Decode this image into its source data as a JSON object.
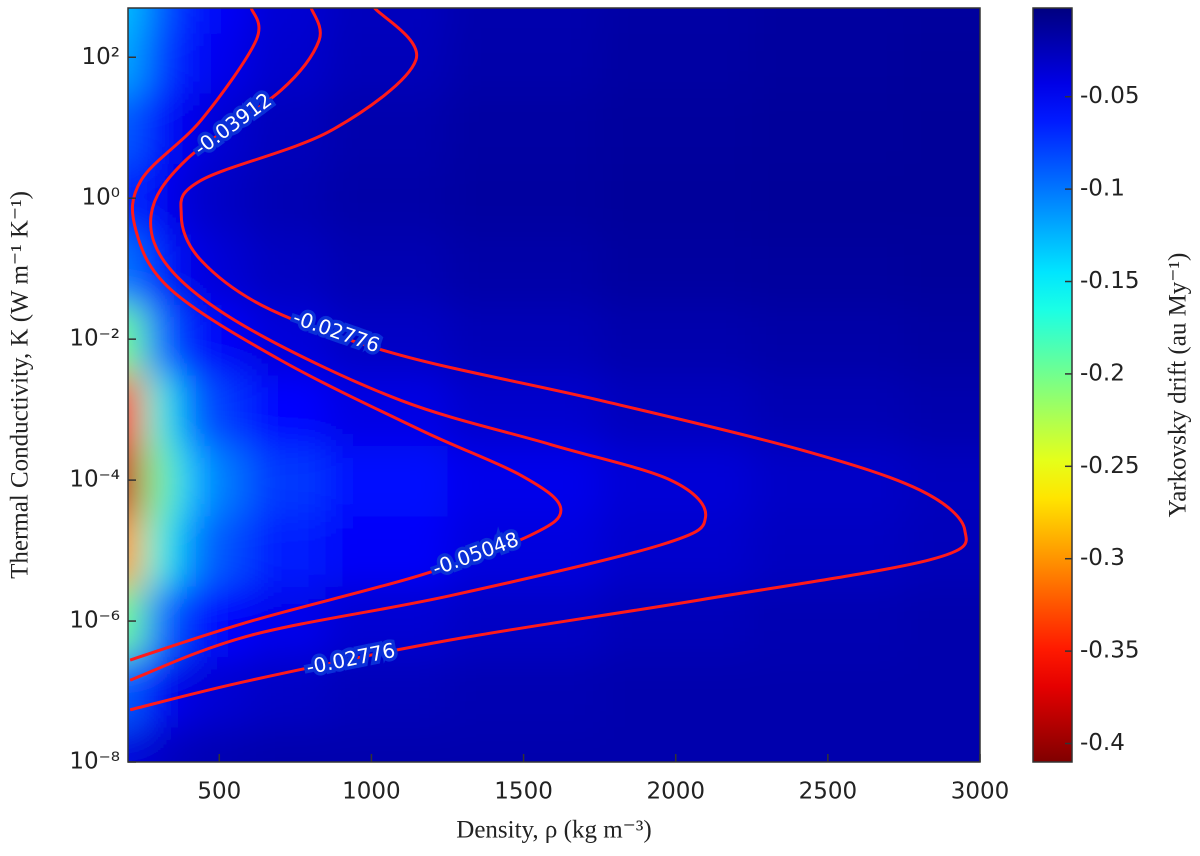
{
  "chart_data": {
    "type": "heatmap",
    "xlabel": "Density, ρ (kg m⁻³)",
    "ylabel": "Thermal Conductivity, K (W m⁻¹ K⁻¹)",
    "colorbar_label": "Yarkovsky drift (au My⁻¹)",
    "colormap": "jet",
    "ylog": true,
    "xlim": [
      200,
      3000
    ],
    "ylim": [
      1e-08,
      500
    ],
    "clim": [
      -0.41,
      -0.002
    ],
    "xticks": [
      500,
      1000,
      1500,
      2000,
      2500,
      3000
    ],
    "yticks": [
      {
        "value": 1e-08,
        "label": "10⁻⁸"
      },
      {
        "value": 1e-06,
        "label": "10⁻⁶"
      },
      {
        "value": 0.0001,
        "label": "10⁻⁴"
      },
      {
        "value": 0.01,
        "label": "10⁻²"
      },
      {
        "value": 1,
        "label": "10⁰"
      },
      {
        "value": 100,
        "label": "10²"
      }
    ],
    "cticks": [
      -0.05,
      -0.1,
      -0.15,
      -0.2,
      -0.25,
      -0.3,
      -0.35,
      -0.4
    ],
    "x": [
      200,
      300,
      400,
      500,
      700,
      1000,
      1500,
      2000,
      2500,
      3000
    ],
    "y": [
      1e-08,
      1e-07,
      1e-06,
      1e-05,
      0.0001,
      0.001,
      0.01,
      0.1,
      1,
      10,
      100,
      500
    ],
    "z": [
      [
        -0.04,
        -0.03,
        -0.025,
        -0.022,
        -0.02,
        -0.02,
        -0.02,
        -0.02,
        -0.02,
        -0.02
      ],
      [
        -0.09,
        -0.05,
        -0.04,
        -0.035,
        -0.03,
        -0.025,
        -0.022,
        -0.02,
        -0.02,
        -0.02
      ],
      [
        -0.2,
        -0.1,
        -0.07,
        -0.055,
        -0.045,
        -0.035,
        -0.03,
        -0.025,
        -0.022,
        -0.02
      ],
      [
        -0.3,
        -0.17,
        -0.11,
        -0.085,
        -0.065,
        -0.05,
        -0.04,
        -0.033,
        -0.028,
        -0.025
      ],
      [
        -0.38,
        -0.2,
        -0.13,
        -0.1,
        -0.075,
        -0.058,
        -0.045,
        -0.037,
        -0.031,
        -0.027
      ],
      [
        -0.35,
        -0.17,
        -0.1,
        -0.075,
        -0.055,
        -0.042,
        -0.033,
        -0.027,
        -0.023,
        -0.02
      ],
      [
        -0.2,
        -0.1,
        -0.065,
        -0.05,
        -0.038,
        -0.03,
        -0.024,
        -0.02,
        -0.018,
        -0.016
      ],
      [
        -0.1,
        -0.065,
        -0.045,
        -0.036,
        -0.028,
        -0.022,
        -0.018,
        -0.015,
        -0.014,
        -0.013
      ],
      [
        -0.07,
        -0.05,
        -0.036,
        -0.03,
        -0.023,
        -0.018,
        -0.015,
        -0.013,
        -0.012,
        -0.012
      ],
      [
        -0.09,
        -0.06,
        -0.045,
        -0.035,
        -0.026,
        -0.02,
        -0.016,
        -0.014,
        -0.013,
        -0.012
      ],
      [
        -0.12,
        -0.08,
        -0.06,
        -0.045,
        -0.033,
        -0.025,
        -0.019,
        -0.016,
        -0.014,
        -0.013
      ],
      [
        -0.13,
        -0.09,
        -0.065,
        -0.05,
        -0.036,
        -0.027,
        -0.02,
        -0.017,
        -0.015,
        -0.014
      ]
    ],
    "contours": [
      {
        "level": -0.02776,
        "color": "#ff1a1a",
        "x": [
          1010,
          1146,
          867,
          441,
          375,
          441,
          670,
          1097,
          1753,
          2410,
          2803,
          2950,
          2835,
          2081,
          1261,
          605,
          207
        ],
        "y": [
          501,
          91,
          9.1,
          1.8,
          0.58,
          0.13,
          0.026,
          0.0059,
          0.00135,
          0.00027,
          7.2e-05,
          1.95e-05,
          7.4e-06,
          2e-06,
          5.4e-07,
          1.45e-07,
          5.5e-08
        ]
      },
      {
        "level": -0.03912,
        "color": "#ff1a1a",
        "x": [
          802,
          828,
          703,
          391,
          276,
          342,
          605,
          1097,
          1589,
          1983,
          2098,
          1950,
          1261,
          605,
          207
        ],
        "y": [
          501,
          174,
          34,
          3.5,
          0.58,
          0.095,
          0.0135,
          0.00135,
          0.00032,
          0.0001,
          3e-05,
          1.2e-05,
          2.3e-06,
          6.3e-07,
          1.45e-07
        ]
      },
      {
        "level": -0.05048,
        "color": "#ff1a1a",
        "x": [
          605,
          621,
          441,
          243,
          226,
          342,
          703,
          1163,
          1491,
          1622,
          1524,
          1163,
          605,
          207
        ],
        "y": [
          501,
          174,
          12.9,
          1.8,
          0.35,
          0.05,
          0.005,
          0.00051,
          0.000117,
          4e-05,
          1.66e-05,
          4.5e-06,
          1e-06,
          2.8e-07
        ]
      }
    ]
  }
}
